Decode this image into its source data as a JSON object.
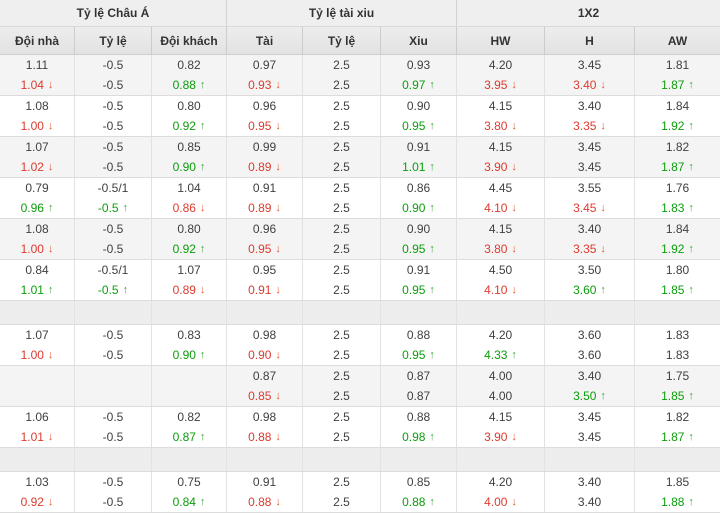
{
  "colors": {
    "up_text": "#0b9e0b",
    "down_text": "#dc3b2f",
    "up_arrow": "#43a843",
    "down_arrow": "#e8562f",
    "header_bg": "#efefef",
    "subheader_bg": "#e7e7e7",
    "row_shade_bg": "#f4f4f4",
    "spacer_bg": "#ededed",
    "text": "#404040",
    "border": "#dcdcdc"
  },
  "icons": {
    "up": "↑",
    "down": "↓"
  },
  "header": {
    "groups": [
      {
        "label": "Tỷ lệ Châu Á"
      },
      {
        "label": "Tỷ lệ tài xiu"
      },
      {
        "label": "1X2"
      }
    ],
    "columns": [
      "Đội nhà",
      "Tỷ lệ",
      "Đội khách",
      "Tài",
      "Tỷ lệ",
      "Xiu",
      "HW",
      "H",
      "AW"
    ]
  },
  "rows": [
    {
      "type": "pair",
      "open": [
        [
          "1.11",
          ""
        ],
        [
          "-0.5",
          ""
        ],
        [
          "0.82",
          ""
        ],
        [
          "0.97",
          ""
        ],
        [
          "2.5",
          ""
        ],
        [
          "0.93",
          ""
        ],
        [
          "4.20",
          ""
        ],
        [
          "3.45",
          ""
        ],
        [
          "1.81",
          ""
        ]
      ],
      "live": [
        [
          "1.04",
          "d"
        ],
        [
          "-0.5",
          ""
        ],
        [
          "0.88",
          "u"
        ],
        [
          "0.93",
          "d"
        ],
        [
          "2.5",
          ""
        ],
        [
          "0.97",
          "u"
        ],
        [
          "3.95",
          "d"
        ],
        [
          "3.40",
          "d"
        ],
        [
          "1.87",
          "u"
        ]
      ]
    },
    {
      "type": "pair",
      "open": [
        [
          "1.08",
          ""
        ],
        [
          "-0.5",
          ""
        ],
        [
          "0.80",
          ""
        ],
        [
          "0.96",
          ""
        ],
        [
          "2.5",
          ""
        ],
        [
          "0.90",
          ""
        ],
        [
          "4.15",
          ""
        ],
        [
          "3.40",
          ""
        ],
        [
          "1.84",
          ""
        ]
      ],
      "live": [
        [
          "1.00",
          "d"
        ],
        [
          "-0.5",
          ""
        ],
        [
          "0.92",
          "u"
        ],
        [
          "0.95",
          "d"
        ],
        [
          "2.5",
          ""
        ],
        [
          "0.95",
          "u"
        ],
        [
          "3.80",
          "d"
        ],
        [
          "3.35",
          "d"
        ],
        [
          "1.92",
          "u"
        ]
      ]
    },
    {
      "type": "pair",
      "open": [
        [
          "1.07",
          ""
        ],
        [
          "-0.5",
          ""
        ],
        [
          "0.85",
          ""
        ],
        [
          "0.99",
          ""
        ],
        [
          "2.5",
          ""
        ],
        [
          "0.91",
          ""
        ],
        [
          "4.15",
          ""
        ],
        [
          "3.45",
          ""
        ],
        [
          "1.82",
          ""
        ]
      ],
      "live": [
        [
          "1.02",
          "d"
        ],
        [
          "-0.5",
          ""
        ],
        [
          "0.90",
          "u"
        ],
        [
          "0.89",
          "d"
        ],
        [
          "2.5",
          ""
        ],
        [
          "1.01",
          "u"
        ],
        [
          "3.90",
          "d"
        ],
        [
          "3.45",
          ""
        ],
        [
          "1.87",
          "u"
        ]
      ]
    },
    {
      "type": "pair",
      "open": [
        [
          "0.79",
          ""
        ],
        [
          "-0.5/1",
          ""
        ],
        [
          "1.04",
          ""
        ],
        [
          "0.91",
          ""
        ],
        [
          "2.5",
          ""
        ],
        [
          "0.86",
          ""
        ],
        [
          "4.45",
          ""
        ],
        [
          "3.55",
          ""
        ],
        [
          "1.76",
          ""
        ]
      ],
      "live": [
        [
          "0.96",
          "u"
        ],
        [
          "-0.5",
          "u"
        ],
        [
          "0.86",
          "d"
        ],
        [
          "0.89",
          "d"
        ],
        [
          "2.5",
          ""
        ],
        [
          "0.90",
          "u"
        ],
        [
          "4.10",
          "d"
        ],
        [
          "3.45",
          "d"
        ],
        [
          "1.83",
          "u"
        ]
      ]
    },
    {
      "type": "pair",
      "open": [
        [
          "1.08",
          ""
        ],
        [
          "-0.5",
          ""
        ],
        [
          "0.80",
          ""
        ],
        [
          "0.96",
          ""
        ],
        [
          "2.5",
          ""
        ],
        [
          "0.90",
          ""
        ],
        [
          "4.15",
          ""
        ],
        [
          "3.40",
          ""
        ],
        [
          "1.84",
          ""
        ]
      ],
      "live": [
        [
          "1.00",
          "d"
        ],
        [
          "-0.5",
          ""
        ],
        [
          "0.92",
          "u"
        ],
        [
          "0.95",
          "d"
        ],
        [
          "2.5",
          ""
        ],
        [
          "0.95",
          "u"
        ],
        [
          "3.80",
          "d"
        ],
        [
          "3.35",
          "d"
        ],
        [
          "1.92",
          "u"
        ]
      ]
    },
    {
      "type": "pair",
      "open": [
        [
          "0.84",
          ""
        ],
        [
          "-0.5/1",
          ""
        ],
        [
          "1.07",
          ""
        ],
        [
          "0.95",
          ""
        ],
        [
          "2.5",
          ""
        ],
        [
          "0.91",
          ""
        ],
        [
          "4.50",
          ""
        ],
        [
          "3.50",
          ""
        ],
        [
          "1.80",
          ""
        ]
      ],
      "live": [
        [
          "1.01",
          "u"
        ],
        [
          "-0.5",
          "u"
        ],
        [
          "0.89",
          "d"
        ],
        [
          "0.91",
          "d"
        ],
        [
          "2.5",
          ""
        ],
        [
          "0.95",
          "u"
        ],
        [
          "4.10",
          "d"
        ],
        [
          "3.60",
          "u"
        ],
        [
          "1.85",
          "u"
        ]
      ]
    },
    {
      "type": "spacer"
    },
    {
      "type": "pair",
      "open": [
        [
          "1.07",
          ""
        ],
        [
          "-0.5",
          ""
        ],
        [
          "0.83",
          ""
        ],
        [
          "0.98",
          ""
        ],
        [
          "2.5",
          ""
        ],
        [
          "0.88",
          ""
        ],
        [
          "4.20",
          ""
        ],
        [
          "3.60",
          ""
        ],
        [
          "1.83",
          ""
        ]
      ],
      "live": [
        [
          "1.00",
          "d"
        ],
        [
          "-0.5",
          ""
        ],
        [
          "0.90",
          "u"
        ],
        [
          "0.90",
          "d"
        ],
        [
          "2.5",
          ""
        ],
        [
          "0.95",
          "u"
        ],
        [
          "4.33",
          "u"
        ],
        [
          "3.60",
          ""
        ],
        [
          "1.83",
          ""
        ]
      ]
    },
    {
      "type": "pair",
      "open": [
        [
          "",
          ""
        ],
        [
          "",
          ""
        ],
        [
          "",
          ""
        ],
        [
          "0.87",
          ""
        ],
        [
          "2.5",
          ""
        ],
        [
          "0.87",
          ""
        ],
        [
          "4.00",
          ""
        ],
        [
          "3.40",
          ""
        ],
        [
          "1.75",
          ""
        ]
      ],
      "live": [
        [
          "",
          ""
        ],
        [
          "",
          ""
        ],
        [
          "",
          ""
        ],
        [
          "0.85",
          "d"
        ],
        [
          "2.5",
          ""
        ],
        [
          "0.87",
          ""
        ],
        [
          "4.00",
          ""
        ],
        [
          "3.50",
          "u"
        ],
        [
          "1.85",
          "u"
        ]
      ]
    },
    {
      "type": "pair",
      "open": [
        [
          "1.06",
          ""
        ],
        [
          "-0.5",
          ""
        ],
        [
          "0.82",
          ""
        ],
        [
          "0.98",
          ""
        ],
        [
          "2.5",
          ""
        ],
        [
          "0.88",
          ""
        ],
        [
          "4.15",
          ""
        ],
        [
          "3.45",
          ""
        ],
        [
          "1.82",
          ""
        ]
      ],
      "live": [
        [
          "1.01",
          "d"
        ],
        [
          "-0.5",
          ""
        ],
        [
          "0.87",
          "u"
        ],
        [
          "0.88",
          "d"
        ],
        [
          "2.5",
          ""
        ],
        [
          "0.98",
          "u"
        ],
        [
          "3.90",
          "d"
        ],
        [
          "3.45",
          ""
        ],
        [
          "1.87",
          "u"
        ]
      ]
    },
    {
      "type": "spacer"
    },
    {
      "type": "pair",
      "open": [
        [
          "1.03",
          ""
        ],
        [
          "-0.5",
          ""
        ],
        [
          "0.75",
          ""
        ],
        [
          "0.91",
          ""
        ],
        [
          "2.5",
          ""
        ],
        [
          "0.85",
          ""
        ],
        [
          "4.20",
          ""
        ],
        [
          "3.40",
          ""
        ],
        [
          "1.85",
          ""
        ]
      ],
      "live": [
        [
          "0.92",
          "d"
        ],
        [
          "-0.5",
          ""
        ],
        [
          "0.84",
          "u"
        ],
        [
          "0.88",
          "d"
        ],
        [
          "2.5",
          ""
        ],
        [
          "0.88",
          "u"
        ],
        [
          "4.00",
          "d"
        ],
        [
          "3.40",
          ""
        ],
        [
          "1.88",
          "u"
        ]
      ]
    }
  ]
}
